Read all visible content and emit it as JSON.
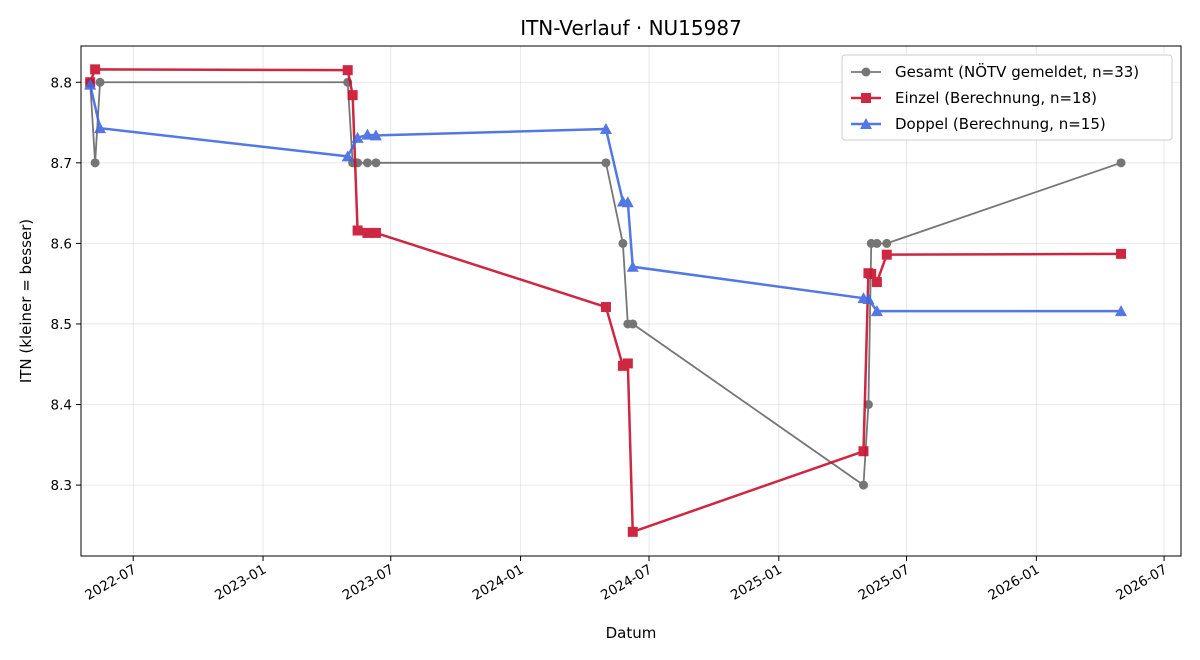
{
  "chart_data": {
    "type": "line",
    "title": "ITN-Verlauf · NU15987",
    "xlabel": "Datum",
    "ylabel": "ITN  (kleiner = besser)",
    "x_axis_type": "date",
    "xlim": [
      "2022-04-18",
      "2026-07-25"
    ],
    "ylim": [
      8.212,
      8.845
    ],
    "grid": true,
    "legend_position": "top-right",
    "x_ticks": [
      "2022-07",
      "2023-01",
      "2023-07",
      "2024-01",
      "2024-07",
      "2025-01",
      "2025-07",
      "2026-01",
      "2026-07"
    ],
    "y_ticks": [
      "8.3",
      "8.4",
      "8.5",
      "8.6",
      "8.7",
      "8.8"
    ],
    "series": [
      {
        "name": "Gesamt (NÖTV gemeldet, n=33)",
        "color": "#555555",
        "marker": "circle",
        "points": [
          [
            "2022-05-01",
            8.8
          ],
          [
            "2022-05-08",
            8.7
          ],
          [
            "2022-05-15",
            8.8
          ],
          [
            "2023-05-01",
            8.8
          ],
          [
            "2023-05-08",
            8.7
          ],
          [
            "2023-05-15",
            8.7
          ],
          [
            "2023-05-29",
            8.7
          ],
          [
            "2023-06-10",
            8.7
          ],
          [
            "2024-05-01",
            8.7
          ],
          [
            "2024-05-25",
            8.6
          ],
          [
            "2024-06-01",
            8.5
          ],
          [
            "2024-06-08",
            8.5
          ],
          [
            "2025-05-01",
            8.3
          ],
          [
            "2025-05-08",
            8.4
          ],
          [
            "2025-05-12",
            8.6
          ],
          [
            "2025-05-20",
            8.6
          ],
          [
            "2025-06-03",
            8.6
          ],
          [
            "2026-05-01",
            8.7
          ]
        ]
      },
      {
        "name": "Einzel (Berechnung, n=18)",
        "color": "#c8102e",
        "marker": "square",
        "points": [
          [
            "2022-05-01",
            8.8
          ],
          [
            "2022-05-08",
            8.816
          ],
          [
            "2023-05-01",
            8.815
          ],
          [
            "2023-05-08",
            8.784
          ],
          [
            "2023-05-15",
            8.616
          ],
          [
            "2023-05-29",
            8.613
          ],
          [
            "2023-06-10",
            8.613
          ],
          [
            "2024-05-01",
            8.521
          ],
          [
            "2024-05-25",
            8.448
          ],
          [
            "2024-06-01",
            8.451
          ],
          [
            "2024-06-08",
            8.242
          ],
          [
            "2025-05-01",
            8.342
          ],
          [
            "2025-05-08",
            8.563
          ],
          [
            "2025-05-12",
            8.562
          ],
          [
            "2025-05-20",
            8.552
          ],
          [
            "2025-06-03",
            8.586
          ],
          [
            "2026-05-01",
            8.587
          ]
        ]
      },
      {
        "name": "Doppel (Berechnung, n=15)",
        "color": "#4169e1",
        "marker": "triangle",
        "points": [
          [
            "2022-05-01",
            8.797
          ],
          [
            "2022-05-15",
            8.743
          ],
          [
            "2023-05-01",
            8.708
          ],
          [
            "2023-05-15",
            8.731
          ],
          [
            "2023-05-29",
            8.735
          ],
          [
            "2023-06-10",
            8.734
          ],
          [
            "2024-05-01",
            8.742
          ],
          [
            "2024-05-25",
            8.652
          ],
          [
            "2024-06-01",
            8.651
          ],
          [
            "2024-06-08",
            8.571
          ],
          [
            "2025-05-01",
            8.532
          ],
          [
            "2025-05-08",
            8.531
          ],
          [
            "2025-05-20",
            8.516
          ],
          [
            "2026-05-01",
            8.516
          ]
        ]
      }
    ]
  }
}
